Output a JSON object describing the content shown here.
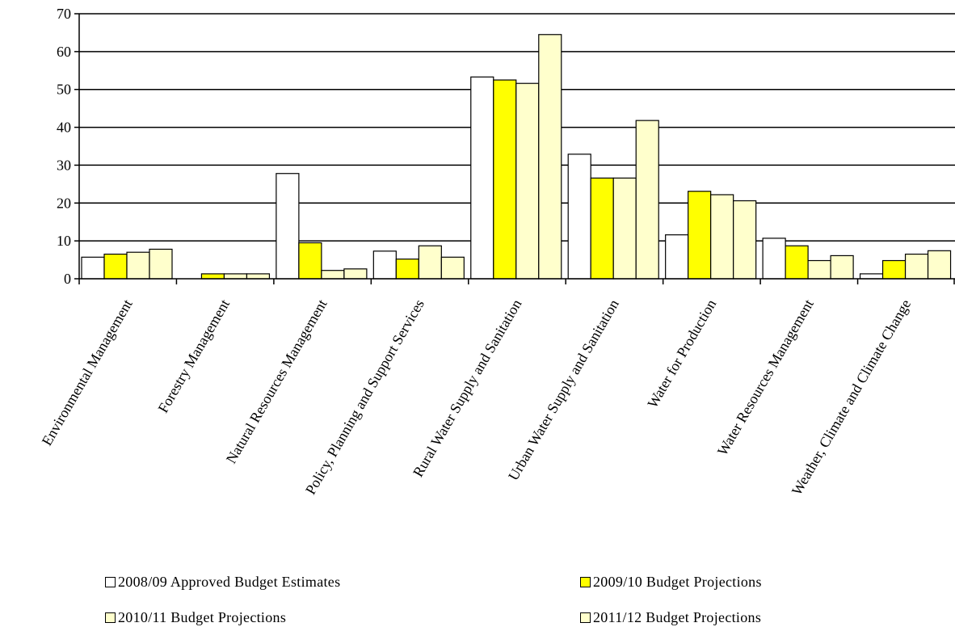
{
  "chart_data": {
    "type": "bar",
    "categories": [
      "Environmental Management",
      "Forestry Management",
      "Natural Resources Management",
      "Policy, Planning and Support Services",
      "Rural Water Supply and Sanitation",
      "Urban Water Supply and Sanitation",
      "Water for Production",
      "Water Resources Management",
      "Weather, Climate and Climate Change"
    ],
    "series": [
      {
        "name": "2008/09 Approved Budget Estimates",
        "color": "#ffffff",
        "values": [
          5.7,
          0,
          27.8,
          7.3,
          53.3,
          32.9,
          11.6,
          10.7,
          1.3
        ]
      },
      {
        "name": "2009/10 Budget Projections",
        "color": "#ffff00",
        "values": [
          6.5,
          1.3,
          9.5,
          5.2,
          52.5,
          26.6,
          23.1,
          8.7,
          4.8
        ]
      },
      {
        "name": "2010/11 Budget Projections",
        "color": "#ffffcc",
        "values": [
          7.0,
          1.3,
          2.2,
          8.7,
          51.6,
          26.6,
          22.2,
          4.8,
          6.5
        ]
      },
      {
        "name": "2011/12 Budget Projections",
        "color": "#ffffcc",
        "values": [
          7.8,
          1.3,
          2.6,
          5.7,
          64.5,
          41.8,
          20.6,
          6.1,
          7.4
        ]
      }
    ],
    "ylim": [
      0,
      70
    ],
    "yticks": [
      0,
      10,
      20,
      30,
      40,
      50,
      60,
      70
    ],
    "grid": true,
    "legend_position": "bottom"
  }
}
